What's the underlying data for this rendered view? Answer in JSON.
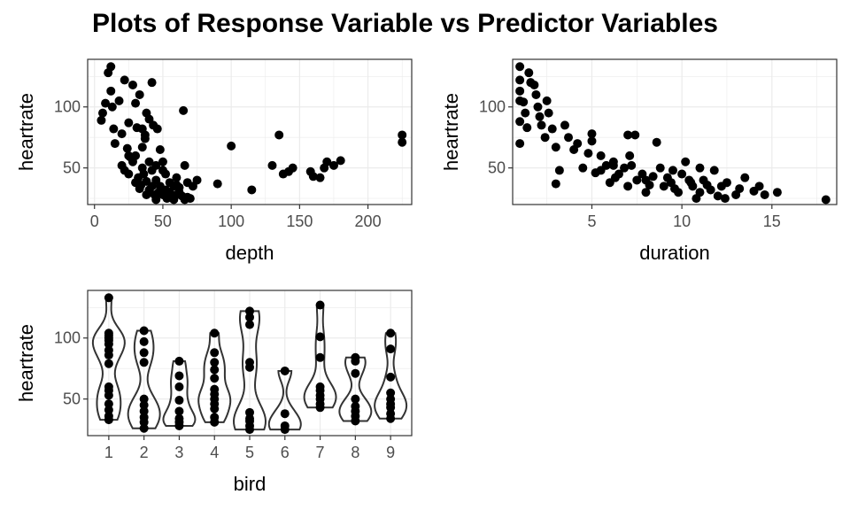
{
  "title": "Plots of Response Variable vs Predictor Variables",
  "colors": {
    "points": "#000000",
    "grid": "#ebebeb",
    "panel_border": "#333333",
    "violin": "#333333",
    "tick_text": "#4d4d4d"
  },
  "chart_data": [
    {
      "type": "scatter",
      "xlabel": "depth",
      "ylabel": "heartrate",
      "xlim": [
        -5,
        232
      ],
      "ylim": [
        20,
        139
      ],
      "xticks": [
        0,
        50,
        100,
        150,
        200
      ],
      "yticks": [
        50,
        100
      ],
      "grid": true,
      "points": [
        [
          5,
          89
        ],
        [
          6,
          95
        ],
        [
          8,
          103
        ],
        [
          10,
          128
        ],
        [
          12,
          133
        ],
        [
          13,
          100
        ],
        [
          12,
          113
        ],
        [
          14,
          82
        ],
        [
          15,
          70
        ],
        [
          18,
          105
        ],
        [
          20,
          78
        ],
        [
          22,
          122
        ],
        [
          24,
          66
        ],
        [
          25,
          87
        ],
        [
          26,
          59
        ],
        [
          25,
          45
        ],
        [
          28,
          118
        ],
        [
          30,
          103
        ],
        [
          30,
          60
        ],
        [
          31,
          83
        ],
        [
          33,
          110
        ],
        [
          35,
          82
        ],
        [
          35,
          67
        ],
        [
          37,
          77
        ],
        [
          38,
          95
        ],
        [
          37,
          74
        ],
        [
          40,
          90
        ],
        [
          42,
          120
        ],
        [
          43,
          85
        ],
        [
          40,
          55
        ],
        [
          42,
          48
        ],
        [
          45,
          40
        ],
        [
          46,
          82
        ],
        [
          48,
          65
        ],
        [
          50,
          55
        ],
        [
          52,
          45
        ],
        [
          55,
          38
        ],
        [
          58,
          35
        ],
        [
          60,
          42
        ],
        [
          62,
          30
        ],
        [
          65,
          97
        ],
        [
          66,
          52
        ],
        [
          68,
          38
        ],
        [
          72,
          35
        ],
        [
          75,
          40
        ],
        [
          20,
          52
        ],
        [
          22,
          48
        ],
        [
          25,
          60
        ],
        [
          28,
          55
        ],
        [
          30,
          38
        ],
        [
          32,
          42
        ],
        [
          33,
          33
        ],
        [
          35,
          50
        ],
        [
          36,
          45
        ],
        [
          38,
          28
        ],
        [
          40,
          32
        ],
        [
          42,
          35
        ],
        [
          44,
          28
        ],
        [
          45,
          24
        ],
        [
          47,
          30
        ],
        [
          48,
          35
        ],
        [
          50,
          28
        ],
        [
          52,
          32
        ],
        [
          53,
          25
        ],
        [
          55,
          30
        ],
        [
          57,
          27
        ],
        [
          58,
          24
        ],
        [
          60,
          28
        ],
        [
          62,
          34
        ],
        [
          64,
          27
        ],
        [
          66,
          24
        ],
        [
          68,
          26
        ],
        [
          70,
          25
        ],
        [
          34,
          36
        ],
        [
          38,
          39
        ],
        [
          45,
          52
        ],
        [
          50,
          48
        ],
        [
          60,
          36
        ],
        [
          90,
          37
        ],
        [
          100,
          68
        ],
        [
          115,
          32
        ],
        [
          130,
          52
        ],
        [
          135,
          77
        ],
        [
          138,
          45
        ],
        [
          142,
          47
        ],
        [
          145,
          50
        ],
        [
          158,
          47
        ],
        [
          160,
          43
        ],
        [
          165,
          42
        ],
        [
          168,
          50
        ],
        [
          170,
          55
        ],
        [
          175,
          52
        ],
        [
          180,
          56
        ],
        [
          225,
          77
        ],
        [
          225,
          71
        ]
      ]
    },
    {
      "type": "scatter",
      "xlabel": "duration",
      "ylabel": "heartrate",
      "xlim": [
        0.6,
        18.6
      ],
      "ylim": [
        20,
        139
      ],
      "xticks": [
        5,
        10,
        15
      ],
      "yticks": [
        50,
        100
      ],
      "grid": true,
      "points": [
        [
          1.0,
          133
        ],
        [
          1.0,
          122
        ],
        [
          1.0,
          113
        ],
        [
          1.0,
          105
        ],
        [
          1.0,
          88
        ],
        [
          1.0,
          70
        ],
        [
          1.2,
          104
        ],
        [
          1.3,
          95
        ],
        [
          1.4,
          83
        ],
        [
          1.5,
          128
        ],
        [
          1.6,
          120
        ],
        [
          1.8,
          118
        ],
        [
          1.9,
          110
        ],
        [
          2.0,
          100
        ],
        [
          2.1,
          92
        ],
        [
          2.2,
          85
        ],
        [
          2.4,
          75
        ],
        [
          2.5,
          105
        ],
        [
          2.6,
          95
        ],
        [
          2.8,
          82
        ],
        [
          3.0,
          67
        ],
        [
          3.2,
          48
        ],
        [
          3.5,
          85
        ],
        [
          3.7,
          75
        ],
        [
          4.0,
          65
        ],
        [
          4.2,
          70
        ],
        [
          4.5,
          50
        ],
        [
          4.8,
          62
        ],
        [
          5.0,
          78
        ],
        [
          5.0,
          72
        ],
        [
          5.2,
          46
        ],
        [
          5.5,
          48
        ],
        [
          5.8,
          52
        ],
        [
          6.0,
          38
        ],
        [
          6.2,
          55
        ],
        [
          6.3,
          42
        ],
        [
          6.5,
          45
        ],
        [
          6.8,
          50
        ],
        [
          7.0,
          77
        ],
        [
          7.1,
          60
        ],
        [
          7.2,
          52
        ],
        [
          7.4,
          77
        ],
        [
          7.5,
          40
        ],
        [
          7.8,
          45
        ],
        [
          8.0,
          40
        ],
        [
          8.2,
          36
        ],
        [
          8.4,
          43
        ],
        [
          8.6,
          71
        ],
        [
          8.8,
          50
        ],
        [
          9.0,
          35
        ],
        [
          9.2,
          42
        ],
        [
          9.4,
          38
        ],
        [
          9.6,
          33
        ],
        [
          9.8,
          30
        ],
        [
          10.0,
          45
        ],
        [
          10.2,
          55
        ],
        [
          10.4,
          40
        ],
        [
          10.6,
          35
        ],
        [
          10.8,
          25
        ],
        [
          11.0,
          50
        ],
        [
          11.2,
          40
        ],
        [
          11.4,
          36
        ],
        [
          11.6,
          32
        ],
        [
          11.8,
          48
        ],
        [
          12.0,
          27
        ],
        [
          12.2,
          35
        ],
        [
          12.4,
          25
        ],
        [
          13.0,
          28
        ],
        [
          13.5,
          42
        ],
        [
          14.0,
          31
        ],
        [
          14.3,
          35
        ],
        [
          14.6,
          28
        ],
        [
          15.3,
          30
        ],
        [
          18.0,
          24
        ],
        [
          3.0,
          37
        ],
        [
          5.5,
          60
        ],
        [
          6.2,
          52
        ],
        [
          7.0,
          35
        ],
        [
          8.0,
          30
        ],
        [
          9.5,
          48
        ],
        [
          10.5,
          38
        ],
        [
          11.0,
          30
        ],
        [
          12.5,
          38
        ],
        [
          13.2,
          33
        ]
      ]
    },
    {
      "type": "violin",
      "xlabel": "bird",
      "ylabel": "heartrate",
      "categories": [
        "1",
        "2",
        "3",
        "4",
        "5",
        "6",
        "7",
        "8",
        "9"
      ],
      "ylim": [
        20,
        139
      ],
      "yticks": [
        50,
        100
      ],
      "grid": true,
      "points": [
        [
          1,
          133
        ],
        [
          1,
          104
        ],
        [
          1,
          100
        ],
        [
          1,
          95
        ],
        [
          1,
          90
        ],
        [
          1,
          86
        ],
        [
          1,
          79
        ],
        [
          1,
          60
        ],
        [
          1,
          57
        ],
        [
          1,
          53
        ],
        [
          1,
          46
        ],
        [
          1,
          41
        ],
        [
          1,
          36
        ],
        [
          1,
          33
        ],
        [
          1,
          102
        ],
        [
          1,
          98
        ],
        [
          2,
          106
        ],
        [
          2,
          97
        ],
        [
          2,
          88
        ],
        [
          2,
          80
        ],
        [
          2,
          50
        ],
        [
          2,
          45
        ],
        [
          2,
          40
        ],
        [
          2,
          35
        ],
        [
          2,
          31
        ],
        [
          2,
          26
        ],
        [
          3,
          81
        ],
        [
          3,
          69
        ],
        [
          3,
          60
        ],
        [
          3,
          49
        ],
        [
          3,
          40
        ],
        [
          3,
          34
        ],
        [
          3,
          31
        ],
        [
          3,
          28
        ],
        [
          4,
          104
        ],
        [
          4,
          88
        ],
        [
          4,
          80
        ],
        [
          4,
          74
        ],
        [
          4,
          67
        ],
        [
          4,
          58
        ],
        [
          4,
          54
        ],
        [
          4,
          50
        ],
        [
          4,
          46
        ],
        [
          4,
          42
        ],
        [
          4,
          35
        ],
        [
          4,
          31
        ],
        [
          5,
          122
        ],
        [
          5,
          117
        ],
        [
          5,
          111
        ],
        [
          5,
          80
        ],
        [
          5,
          76
        ],
        [
          5,
          39
        ],
        [
          5,
          34
        ],
        [
          5,
          32
        ],
        [
          5,
          28
        ],
        [
          5,
          25
        ],
        [
          6,
          73
        ],
        [
          6,
          38
        ],
        [
          6,
          28
        ],
        [
          6,
          25
        ],
        [
          7,
          127
        ],
        [
          7,
          101
        ],
        [
          7,
          84
        ],
        [
          7,
          60
        ],
        [
          7,
          57
        ],
        [
          7,
          53
        ],
        [
          7,
          50
        ],
        [
          7,
          46
        ],
        [
          7,
          43
        ],
        [
          8,
          84
        ],
        [
          8,
          81
        ],
        [
          8,
          71
        ],
        [
          8,
          50
        ],
        [
          8,
          44
        ],
        [
          8,
          40
        ],
        [
          8,
          36
        ],
        [
          8,
          32
        ],
        [
          9,
          104
        ],
        [
          9,
          91
        ],
        [
          9,
          68
        ],
        [
          9,
          55
        ],
        [
          9,
          50
        ],
        [
          9,
          46
        ],
        [
          9,
          43
        ],
        [
          9,
          38
        ],
        [
          9,
          34
        ]
      ]
    }
  ]
}
